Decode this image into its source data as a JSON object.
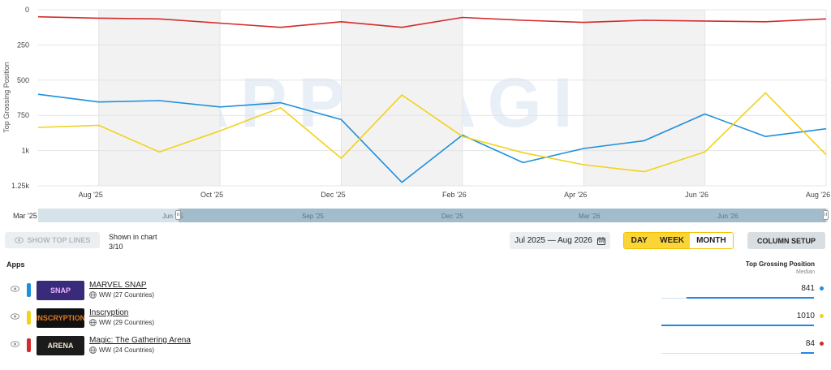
{
  "chart_data": {
    "type": "line",
    "y_title": "Top Grossing Position",
    "y_reversed": true,
    "ylim": [
      0,
      1250
    ],
    "y_ticks": [
      0,
      250,
      500,
      750,
      1000,
      1250
    ],
    "y_tick_labels": [
      "0",
      "250",
      "500",
      "750",
      "1k",
      "1.25k"
    ],
    "x_ticks": [
      "Aug '25",
      "Oct '25",
      "Dec '25",
      "Feb '26",
      "Apr '26",
      "Jun '26",
      "Aug '26"
    ],
    "x": [
      "Jul '25",
      "Aug '25",
      "Sep '25",
      "Oct '25",
      "Nov '25",
      "Dec '25",
      "Jan '26",
      "Feb '26",
      "Mar '26",
      "Apr '26",
      "May '26",
      "Jun '26",
      "Jul '26",
      "Aug '26"
    ],
    "series": [
      {
        "color": "#d62a2a",
        "values": [
          50,
          60,
          65,
          95,
          125,
          85,
          125,
          55,
          75,
          90,
          75,
          80,
          85,
          65
        ]
      },
      {
        "color": "#1e8fdc",
        "values": [
          600,
          655,
          645,
          690,
          660,
          780,
          1225,
          890,
          1085,
          985,
          930,
          740,
          900,
          845
        ]
      },
      {
        "color": "#f2d21b",
        "values": [
          835,
          820,
          1010,
          860,
          695,
          1055,
          605,
          900,
          1015,
          1100,
          1150,
          1010,
          590,
          1030
        ]
      }
    ],
    "grid": true,
    "shaded_bands": true
  },
  "watermark": "APPMAGIC",
  "navigator": {
    "start_label": "Mar '25",
    "ticks": [
      "Jun '25",
      "Sep '25",
      "Dec '25",
      "Mar '26",
      "Jun '26"
    ]
  },
  "toolbar": {
    "show_top_lines": "SHOW TOP LINES",
    "shown_caption": "Shown in chart",
    "shown_count": "3/10",
    "date_range": "Jul 2025 — Aug 2026",
    "periods": [
      "DAY",
      "WEEK",
      "MONTH"
    ],
    "active_period": "MONTH",
    "column_setup": "COLUMN SETUP"
  },
  "table": {
    "apps_header": "Apps",
    "metric_header": "Top Grossing Position",
    "metric_sub": "Median",
    "rows": [
      {
        "name": "MARVEL SNAP",
        "region": "WW (27 Countries)",
        "value": "841",
        "value_num": 841,
        "color": "#1e8fdc",
        "thumb_bg": "#3a2a7a",
        "thumb_text": "SNAP",
        "thumb_color": "#e9b3ff"
      },
      {
        "name": "Inscryption",
        "region": "WW (29 Countries)",
        "value": "1010",
        "value_num": 1010,
        "color": "#f2d21b",
        "thumb_bg": "#111111",
        "thumb_text": "INSCRYPTION",
        "thumb_color": "#e07a20"
      },
      {
        "name": "Magic: The Gathering Arena",
        "region": "WW (24 Countries)",
        "value": "84",
        "value_num": 84,
        "color": "#d62a2a",
        "thumb_bg": "#1b1b1b",
        "thumb_text": "ARENA",
        "thumb_color": "#f0e6d0"
      }
    ]
  }
}
